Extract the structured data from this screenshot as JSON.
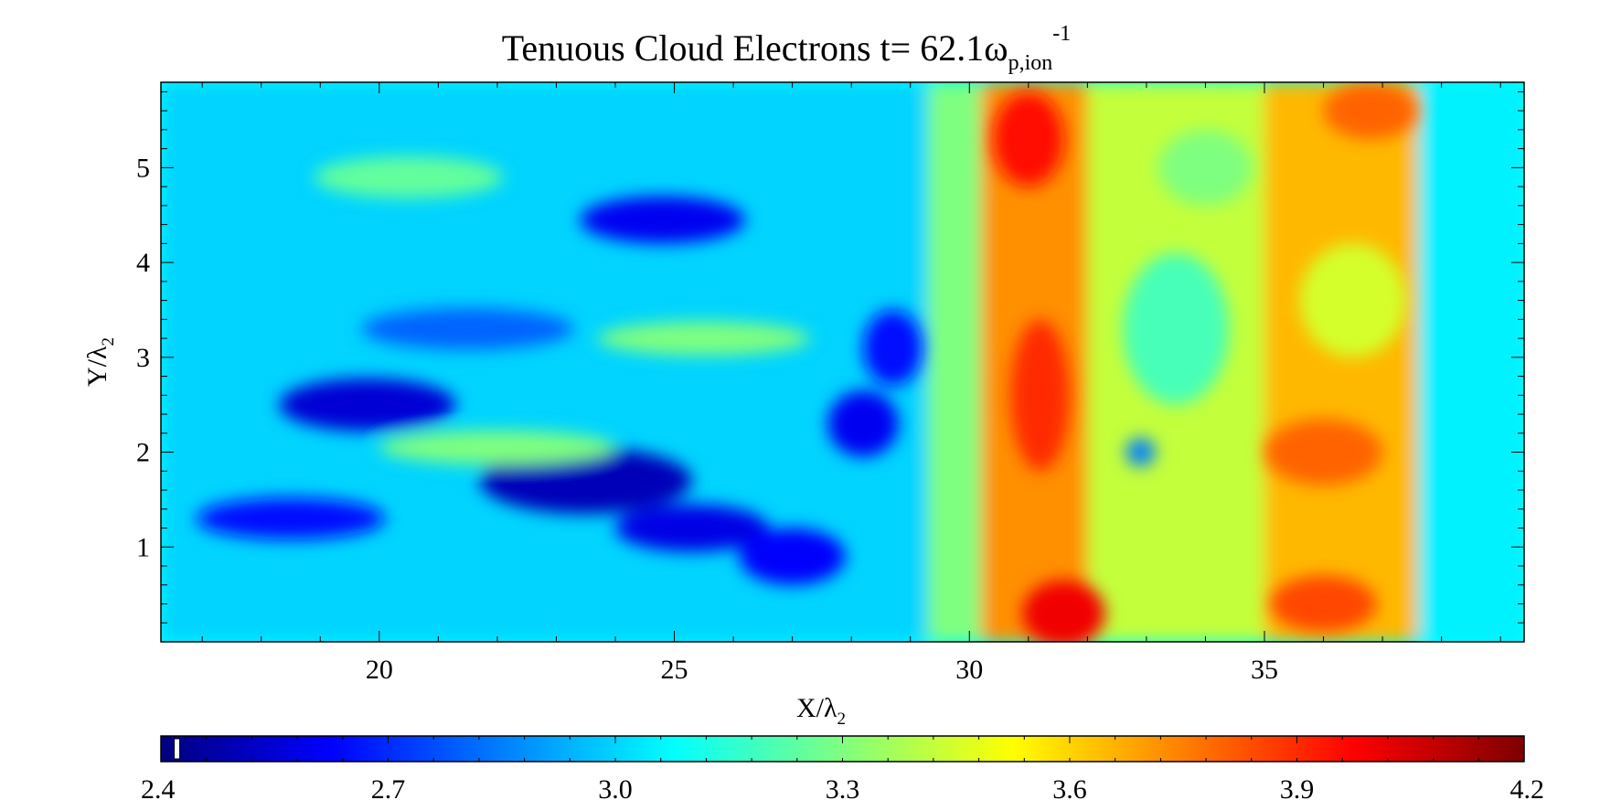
{
  "chart_data": {
    "type": "heatmap",
    "title": {
      "main": "Tenuous Cloud Electrons t=  62.1",
      "symbol": "ω",
      "subscript": "p,ion",
      "superscript": "-1"
    },
    "xlabel": {
      "main": "X/",
      "symbol": "λ",
      "subscript": "2"
    },
    "ylabel": {
      "main": "Y/",
      "symbol": "λ",
      "subscript": "2"
    },
    "xlim": [
      16.3,
      39.4
    ],
    "ylim": [
      0,
      5.9
    ],
    "xticks": [
      {
        "value": 20,
        "label": "20"
      },
      {
        "value": 25,
        "label": "25"
      },
      {
        "value": 30,
        "label": "30"
      },
      {
        "value": 35,
        "label": "35"
      }
    ],
    "yticks": [
      {
        "value": 1,
        "label": "1"
      },
      {
        "value": 2,
        "label": "2"
      },
      {
        "value": 3,
        "label": "3"
      },
      {
        "value": 4,
        "label": "4"
      },
      {
        "value": 5,
        "label": "5"
      }
    ],
    "colorbar": {
      "range": [
        2.4,
        4.2
      ],
      "marker_value": 2.42,
      "ticks": [
        {
          "value": 2.4,
          "label": "2.4"
        },
        {
          "value": 2.7,
          "label": "2.7"
        },
        {
          "value": 3.0,
          "label": "3.0"
        },
        {
          "value": 3.3,
          "label": "3.3"
        },
        {
          "value": 3.6,
          "label": "3.6"
        },
        {
          "value": 3.9,
          "label": "3.9"
        },
        {
          "value": 4.2,
          "label": "4.2"
        }
      ]
    },
    "colormap": {
      "name": "jet",
      "stops": [
        "#00007f",
        "#0000ff",
        "#007fff",
        "#00ffff",
        "#7fff7f",
        "#ffff00",
        "#ff7f00",
        "#ff0000",
        "#7f0000"
      ]
    },
    "regions": [
      {
        "x": [
          16.3,
          29.3
        ],
        "y": [
          0,
          5.9
        ],
        "value": 3.0
      },
      {
        "x": [
          29.3,
          30.2
        ],
        "y": [
          0,
          5.9
        ],
        "value": 3.3
      },
      {
        "x": [
          30.2,
          32.0
        ],
        "y": [
          0,
          5.9
        ],
        "value": 3.72
      },
      {
        "x": [
          32.0,
          35.0
        ],
        "y": [
          0,
          5.9
        ],
        "value": 3.42
      },
      {
        "x": [
          35.0,
          37.6
        ],
        "y": [
          0,
          5.9
        ],
        "value": 3.65
      },
      {
        "x": [
          37.6,
          39.4
        ],
        "y": [
          0,
          5.9
        ],
        "value": 3.05
      }
    ],
    "blobs": [
      {
        "x": 23.5,
        "y": 1.7,
        "rx": 1.8,
        "ry": 0.35,
        "value": 2.5
      },
      {
        "x": 19.8,
        "y": 2.5,
        "rx": 1.5,
        "ry": 0.28,
        "value": 2.55
      },
      {
        "x": 24.8,
        "y": 4.45,
        "rx": 1.4,
        "ry": 0.25,
        "value": 2.6
      },
      {
        "x": 25.3,
        "y": 1.2,
        "rx": 1.3,
        "ry": 0.25,
        "value": 2.58
      },
      {
        "x": 27.0,
        "y": 0.9,
        "rx": 0.9,
        "ry": 0.3,
        "value": 2.62
      },
      {
        "x": 18.5,
        "y": 1.3,
        "rx": 1.6,
        "ry": 0.22,
        "value": 2.65
      },
      {
        "x": 21.5,
        "y": 3.3,
        "rx": 1.8,
        "ry": 0.22,
        "value": 2.8
      },
      {
        "x": 28.2,
        "y": 2.3,
        "rx": 0.6,
        "ry": 0.35,
        "value": 2.6
      },
      {
        "x": 28.7,
        "y": 3.1,
        "rx": 0.5,
        "ry": 0.4,
        "value": 2.65
      },
      {
        "x": 20.5,
        "y": 4.9,
        "rx": 1.6,
        "ry": 0.22,
        "value": 3.25
      },
      {
        "x": 22.0,
        "y": 2.05,
        "rx": 2.0,
        "ry": 0.18,
        "value": 3.3
      },
      {
        "x": 25.5,
        "y": 3.2,
        "rx": 1.8,
        "ry": 0.18,
        "value": 3.3
      },
      {
        "x": 31.0,
        "y": 5.3,
        "rx": 0.6,
        "ry": 0.5,
        "value": 3.95
      },
      {
        "x": 31.2,
        "y": 2.6,
        "rx": 0.5,
        "ry": 0.8,
        "value": 3.9
      },
      {
        "x": 31.6,
        "y": 0.3,
        "rx": 0.7,
        "ry": 0.35,
        "value": 4.0
      },
      {
        "x": 33.5,
        "y": 3.3,
        "rx": 0.9,
        "ry": 0.8,
        "value": 3.2
      },
      {
        "x": 32.9,
        "y": 2.0,
        "rx": 0.25,
        "ry": 0.15,
        "value": 2.85
      },
      {
        "x": 36.0,
        "y": 2.0,
        "rx": 1.0,
        "ry": 0.35,
        "value": 3.8
      },
      {
        "x": 36.0,
        "y": 0.4,
        "rx": 0.9,
        "ry": 0.3,
        "value": 3.85
      },
      {
        "x": 36.8,
        "y": 5.6,
        "rx": 0.8,
        "ry": 0.3,
        "value": 3.8
      },
      {
        "x": 36.5,
        "y": 3.6,
        "rx": 0.9,
        "ry": 0.6,
        "value": 3.45
      },
      {
        "x": 34.0,
        "y": 5.0,
        "rx": 0.8,
        "ry": 0.4,
        "value": 3.3
      }
    ]
  }
}
